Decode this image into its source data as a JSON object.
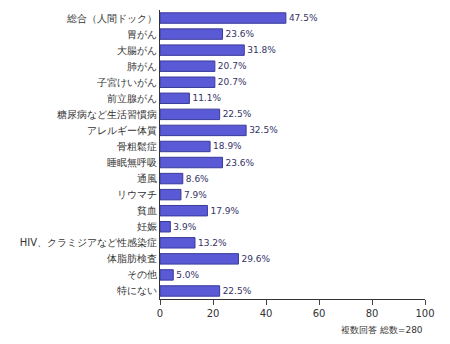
{
  "chart_data": {
    "type": "bar",
    "orientation": "horizontal",
    "categories": [
      "総合（人間ドック）",
      "胃がん",
      "大腸がん",
      "肺がん",
      "子宮けいがん",
      "前立腺がん",
      "糖尿病など生活習慣病",
      "アレルギー体質",
      "骨粗鬆症",
      "睡眠無呼吸",
      "通風",
      "リウマチ",
      "貧血",
      "妊娠",
      "HIV、クラミジアなど性感染症",
      "体脂肪検査",
      "その他",
      "特にない"
    ],
    "values": [
      47.5,
      23.6,
      31.8,
      20.7,
      20.7,
      11.1,
      22.5,
      32.5,
      18.9,
      23.6,
      8.6,
      7.9,
      17.9,
      3.9,
      13.2,
      29.6,
      5.0,
      22.5
    ],
    "value_labels": [
      "47.5%",
      "23.6%",
      "31.8%",
      "20.7%",
      "20.7%",
      "11.1%",
      "22.5%",
      "32.5%",
      "18.9%",
      "23.6%",
      "8.6%",
      "7.9%",
      "17.9%",
      "3.9%",
      "13.2%",
      "29.6%",
      "5.0%",
      "22.5%"
    ],
    "data_labels": true,
    "color": "#5a5ad6",
    "xlim": [
      0,
      100
    ],
    "xticks": [
      0,
      20,
      40,
      60,
      80,
      100
    ],
    "grid": false,
    "annotation": "複数回答 総数=280"
  }
}
